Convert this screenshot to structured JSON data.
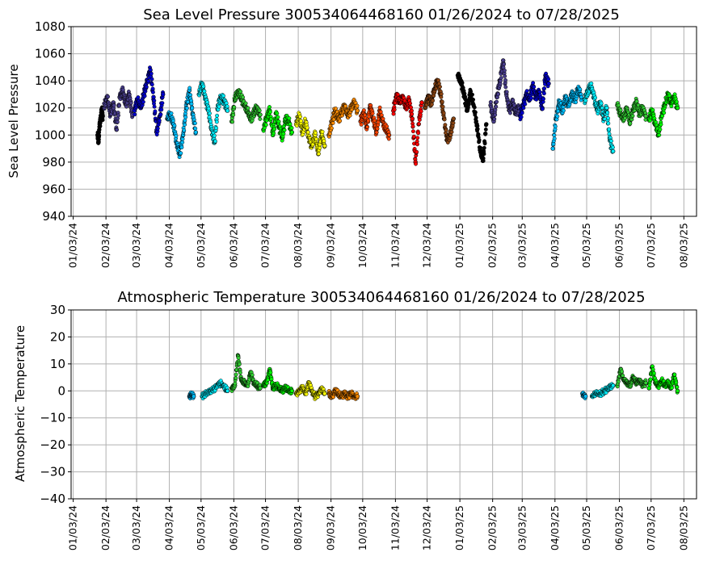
{
  "chart_data": [
    {
      "type": "scatter",
      "title": "Sea Level Pressure 300534064468160  01/26/2024 to 07/28/2025",
      "xlabel": "",
      "ylabel": "Sea Level Pressure",
      "xlim": [
        "2024-01-01",
        "2025-08-15"
      ],
      "ylim": [
        940,
        1080
      ],
      "yticks": [
        "940",
        "960",
        "980",
        "1000",
        "1020",
        "1040",
        "1060",
        "1080"
      ],
      "xticks": [
        "01/03/24",
        "02/03/24",
        "03/03/24",
        "04/03/24",
        "05/03/24",
        "06/03/24",
        "07/03/24",
        "08/03/24",
        "09/03/24",
        "10/03/24",
        "11/03/24",
        "12/03/24",
        "01/03/25",
        "02/03/25",
        "03/03/25",
        "04/03/25",
        "05/03/25",
        "06/03/25",
        "07/03/25",
        "08/03/25"
      ],
      "grid": true,
      "marker_edge_color": "#000000",
      "series": [
        {
          "color": "#000000",
          "x": [
            "2024-01-26",
            "2024-01-27",
            "2024-01-28",
            "2024-01-29",
            "2024-01-30",
            "2024-01-31"
          ],
          "y": [
            1000,
            995,
            1008,
            1012,
            1018,
            1014
          ]
        },
        {
          "color": "#483d8b",
          "x": [
            "2024-02-01",
            "2024-02-04",
            "2024-02-07",
            "2024-02-10",
            "2024-02-13",
            "2024-02-16",
            "2024-02-19",
            "2024-02-22",
            "2024-02-25",
            "2024-02-28"
          ],
          "y": [
            1020,
            1028,
            1016,
            1024,
            1004,
            1028,
            1032,
            1022,
            1030,
            1015
          ]
        },
        {
          "color": "#0000cd",
          "x": [
            "2024-03-01",
            "2024-03-04",
            "2024-03-07",
            "2024-03-10",
            "2024-03-13",
            "2024-03-16",
            "2024-03-19",
            "2024-03-22",
            "2024-03-25",
            "2024-03-28"
          ],
          "y": [
            1018,
            1026,
            1020,
            1030,
            1040,
            1048,
            1028,
            1002,
            1014,
            1030
          ]
        },
        {
          "color": "#00bfff",
          "x": [
            "2024-04-01",
            "2024-04-04",
            "2024-04-07",
            "2024-04-10",
            "2024-04-13",
            "2024-04-16",
            "2024-04-19",
            "2024-04-22",
            "2024-04-25",
            "2024-04-28"
          ],
          "y": [
            1012,
            1015,
            1008,
            994,
            986,
            1000,
            1020,
            1033,
            1016,
            1002
          ]
        },
        {
          "color": "#00f0ff",
          "x": [
            "2024-05-01",
            "2024-05-04",
            "2024-05-07",
            "2024-05-10",
            "2024-05-13",
            "2024-05-16",
            "2024-05-19",
            "2024-05-22",
            "2024-05-25",
            "2024-05-28"
          ],
          "y": [
            1030,
            1038,
            1028,
            1018,
            1004,
            995,
            1022,
            1028,
            1025,
            1018
          ]
        },
        {
          "color": "#32cd32",
          "x": [
            "2024-06-01",
            "2024-06-04",
            "2024-06-07",
            "2024-06-10",
            "2024-06-13",
            "2024-06-16",
            "2024-06-19",
            "2024-06-22",
            "2024-06-25",
            "2024-06-28"
          ],
          "y": [
            1010,
            1026,
            1032,
            1028,
            1022,
            1018,
            1012,
            1016,
            1020,
            1015
          ]
        },
        {
          "color": "#00ff00",
          "x": [
            "2024-07-01",
            "2024-07-04",
            "2024-07-07",
            "2024-07-10",
            "2024-07-13",
            "2024-07-16",
            "2024-07-19",
            "2024-07-22",
            "2024-07-25",
            "2024-07-28"
          ],
          "y": [
            1004,
            1012,
            1018,
            1000,
            1016,
            1006,
            998,
            1012,
            1010,
            1002
          ]
        },
        {
          "color": "#ffff00",
          "x": [
            "2024-08-01",
            "2024-08-04",
            "2024-08-07",
            "2024-08-10",
            "2024-08-13",
            "2024-08-16",
            "2024-08-19",
            "2024-08-22",
            "2024-08-25",
            "2024-08-28"
          ],
          "y": [
            1008,
            1014,
            1002,
            1010,
            998,
            992,
            1000,
            986,
            1002,
            992
          ]
        },
        {
          "color": "#ff8c00",
          "x": [
            "2024-09-01",
            "2024-09-04",
            "2024-09-07",
            "2024-09-10",
            "2024-09-13",
            "2024-09-16",
            "2024-09-19",
            "2024-09-22",
            "2024-09-25",
            "2024-09-28"
          ],
          "y": [
            1000,
            1010,
            1018,
            1012,
            1016,
            1022,
            1014,
            1020,
            1024,
            1018
          ]
        },
        {
          "color": "#ff4500",
          "x": [
            "2024-10-01",
            "2024-10-04",
            "2024-10-07",
            "2024-10-10",
            "2024-10-13",
            "2024-10-16",
            "2024-10-19",
            "2024-10-22",
            "2024-10-25",
            "2024-10-28"
          ],
          "y": [
            1010,
            1016,
            1006,
            1022,
            1012,
            1002,
            1018,
            1010,
            1004,
            1000
          ]
        },
        {
          "color": "#ff0000",
          "x": [
            "2024-11-01",
            "2024-11-04",
            "2024-11-07",
            "2024-11-10",
            "2024-11-13",
            "2024-11-16",
            "2024-11-19",
            "2024-11-22",
            "2024-11-25",
            "2024-11-28"
          ],
          "y": [
            1018,
            1030,
            1024,
            1028,
            1020,
            1026,
            1012,
            980,
            1008,
            1024
          ]
        },
        {
          "color": "#8b4513",
          "x": [
            "2024-12-01",
            "2024-12-04",
            "2024-12-07",
            "2024-12-10",
            "2024-12-13",
            "2024-12-16",
            "2024-12-19",
            "2024-12-22",
            "2024-12-25",
            "2024-12-28"
          ],
          "y": [
            1020,
            1028,
            1024,
            1034,
            1040,
            1030,
            1012,
            996,
            1000,
            1012
          ]
        },
        {
          "color": "#000000",
          "x": [
            "2025-01-01",
            "2025-01-04",
            "2025-01-07",
            "2025-01-10",
            "2025-01-13",
            "2025-01-16",
            "2025-01-19",
            "2025-01-22",
            "2025-01-25",
            "2025-01-28"
          ],
          "y": [
            1044,
            1040,
            1030,
            1018,
            1032,
            1022,
            1008,
            990,
            981,
            1008
          ]
        },
        {
          "color": "#483d8b",
          "x": [
            "2025-02-01",
            "2025-02-04",
            "2025-02-07",
            "2025-02-10",
            "2025-02-13",
            "2025-02-16",
            "2025-02-19",
            "2025-02-22",
            "2025-02-25",
            "2025-02-28"
          ],
          "y": [
            1022,
            1010,
            1028,
            1040,
            1055,
            1030,
            1018,
            1024,
            1016,
            1020
          ]
        },
        {
          "color": "#0000cd",
          "x": [
            "2025-03-01",
            "2025-03-04",
            "2025-03-07",
            "2025-03-10",
            "2025-03-13",
            "2025-03-16",
            "2025-03-19",
            "2025-03-22",
            "2025-03-25",
            "2025-03-28"
          ],
          "y": [
            1014,
            1022,
            1030,
            1026,
            1036,
            1028,
            1032,
            1020,
            1044,
            1038
          ]
        },
        {
          "color": "#00bfff",
          "x": [
            "2025-04-01",
            "2025-04-04",
            "2025-04-07",
            "2025-04-10",
            "2025-04-13",
            "2025-04-16",
            "2025-04-19",
            "2025-04-22",
            "2025-04-25",
            "2025-04-28"
          ],
          "y": [
            990,
            1012,
            1024,
            1018,
            1028,
            1022,
            1030,
            1026,
            1034,
            1028
          ]
        },
        {
          "color": "#00f0ff",
          "x": [
            "2025-05-01",
            "2025-05-04",
            "2025-05-07",
            "2025-05-10",
            "2025-05-13",
            "2025-05-16",
            "2025-05-19",
            "2025-05-22",
            "2025-05-25",
            "2025-05-28"
          ],
          "y": [
            1026,
            1032,
            1036,
            1028,
            1018,
            1024,
            1012,
            1020,
            996,
            988
          ]
        },
        {
          "color": "#32cd32",
          "x": [
            "2025-06-01",
            "2025-06-04",
            "2025-06-07",
            "2025-06-10",
            "2025-06-13",
            "2025-06-16",
            "2025-06-19",
            "2025-06-22",
            "2025-06-25",
            "2025-06-28"
          ],
          "y": [
            1022,
            1016,
            1012,
            1020,
            1010,
            1018,
            1024,
            1016,
            1020,
            1014
          ]
        },
        {
          "color": "#00ff00",
          "x": [
            "2025-07-01",
            "2025-07-04",
            "2025-07-07",
            "2025-07-10",
            "2025-07-13",
            "2025-07-16",
            "2025-07-19",
            "2025-07-22",
            "2025-07-25",
            "2025-07-28"
          ],
          "y": [
            1012,
            1018,
            1008,
            1000,
            1014,
            1022,
            1030,
            1024,
            1028,
            1020
          ]
        }
      ]
    },
    {
      "type": "scatter",
      "title": "Atmospheric Temperature 300534064468160  01/26/2024 to 07/28/2025",
      "xlabel": "",
      "ylabel": "Atmospheric Temperature",
      "xlim": [
        "2024-01-01",
        "2025-08-15"
      ],
      "ylim": [
        -40,
        30
      ],
      "yticks": [
        "−40",
        "−30",
        "−20",
        "−10",
        "0",
        "10",
        "20",
        "30"
      ],
      "xticks": [
        "01/03/24",
        "02/03/24",
        "03/03/24",
        "04/03/24",
        "05/03/24",
        "06/03/24",
        "07/03/24",
        "08/03/24",
        "09/03/24",
        "10/03/24",
        "11/03/24",
        "12/03/24",
        "01/03/25",
        "02/03/25",
        "03/03/25",
        "04/03/25",
        "05/03/25",
        "06/03/25",
        "07/03/25",
        "08/03/25"
      ],
      "grid": true,
      "marker_edge_color": "#000000",
      "series": [
        {
          "color": "#00bfff",
          "x": [
            "2024-04-22",
            "2024-04-24",
            "2024-04-26"
          ],
          "y": [
            -2,
            -1.5,
            -2
          ]
        },
        {
          "color": "#00f0ff",
          "x": [
            "2024-05-04",
            "2024-05-08",
            "2024-05-12",
            "2024-05-16",
            "2024-05-20",
            "2024-05-24",
            "2024-05-28"
          ],
          "y": [
            -2,
            -1,
            0,
            1,
            3,
            2,
            0
          ]
        },
        {
          "color": "#32cd32",
          "x": [
            "2024-06-01",
            "2024-06-04",
            "2024-06-07",
            "2024-06-10",
            "2024-06-13",
            "2024-06-16",
            "2024-06-19",
            "2024-06-22",
            "2024-06-25",
            "2024-06-28"
          ],
          "y": [
            1,
            2,
            13,
            4,
            3,
            2,
            7,
            3,
            2,
            1
          ]
        },
        {
          "color": "#00ff00",
          "x": [
            "2024-07-01",
            "2024-07-04",
            "2024-07-07",
            "2024-07-10",
            "2024-07-13",
            "2024-07-16",
            "2024-07-19",
            "2024-07-22",
            "2024-07-25",
            "2024-07-28"
          ],
          "y": [
            2,
            3,
            8,
            1,
            2,
            1,
            0,
            1,
            0,
            0
          ]
        },
        {
          "color": "#ffff00",
          "x": [
            "2024-08-01",
            "2024-08-04",
            "2024-08-07",
            "2024-08-10",
            "2024-08-13",
            "2024-08-16",
            "2024-08-19",
            "2024-08-22",
            "2024-08-25",
            "2024-08-28"
          ],
          "y": [
            -1,
            0,
            1,
            -1,
            3,
            0,
            -2,
            -1,
            1,
            -1
          ]
        },
        {
          "color": "#ff8c00",
          "x": [
            "2024-09-01",
            "2024-09-04",
            "2024-09-07",
            "2024-09-10",
            "2024-09-13",
            "2024-09-16",
            "2024-09-19",
            "2024-09-22",
            "2024-09-25",
            "2024-09-28"
          ],
          "y": [
            -1,
            -2,
            0,
            -1,
            -2,
            -1,
            -2,
            -1,
            -2,
            -2
          ]
        },
        {
          "color": "#00bfff",
          "x": [
            "2025-04-29",
            "2025-05-02"
          ],
          "y": [
            -1,
            -2
          ]
        },
        {
          "color": "#00f0ff",
          "x": [
            "2025-05-08",
            "2025-05-12",
            "2025-05-16",
            "2025-05-20",
            "2025-05-24",
            "2025-05-28"
          ],
          "y": [
            -2,
            -1,
            -1,
            0,
            1,
            2
          ]
        },
        {
          "color": "#32cd32",
          "x": [
            "2025-06-01",
            "2025-06-04",
            "2025-06-07",
            "2025-06-10",
            "2025-06-13",
            "2025-06-16",
            "2025-06-19",
            "2025-06-22",
            "2025-06-25",
            "2025-06-28"
          ],
          "y": [
            2,
            8,
            4,
            3,
            2,
            5,
            3,
            4,
            2,
            3
          ]
        },
        {
          "color": "#00ff00",
          "x": [
            "2025-07-01",
            "2025-07-04",
            "2025-07-07",
            "2025-07-10",
            "2025-07-13",
            "2025-07-16",
            "2025-07-19",
            "2025-07-22",
            "2025-07-25",
            "2025-07-28"
          ],
          "y": [
            1,
            9,
            3,
            2,
            4,
            2,
            3,
            1,
            6,
            0
          ]
        }
      ]
    }
  ]
}
